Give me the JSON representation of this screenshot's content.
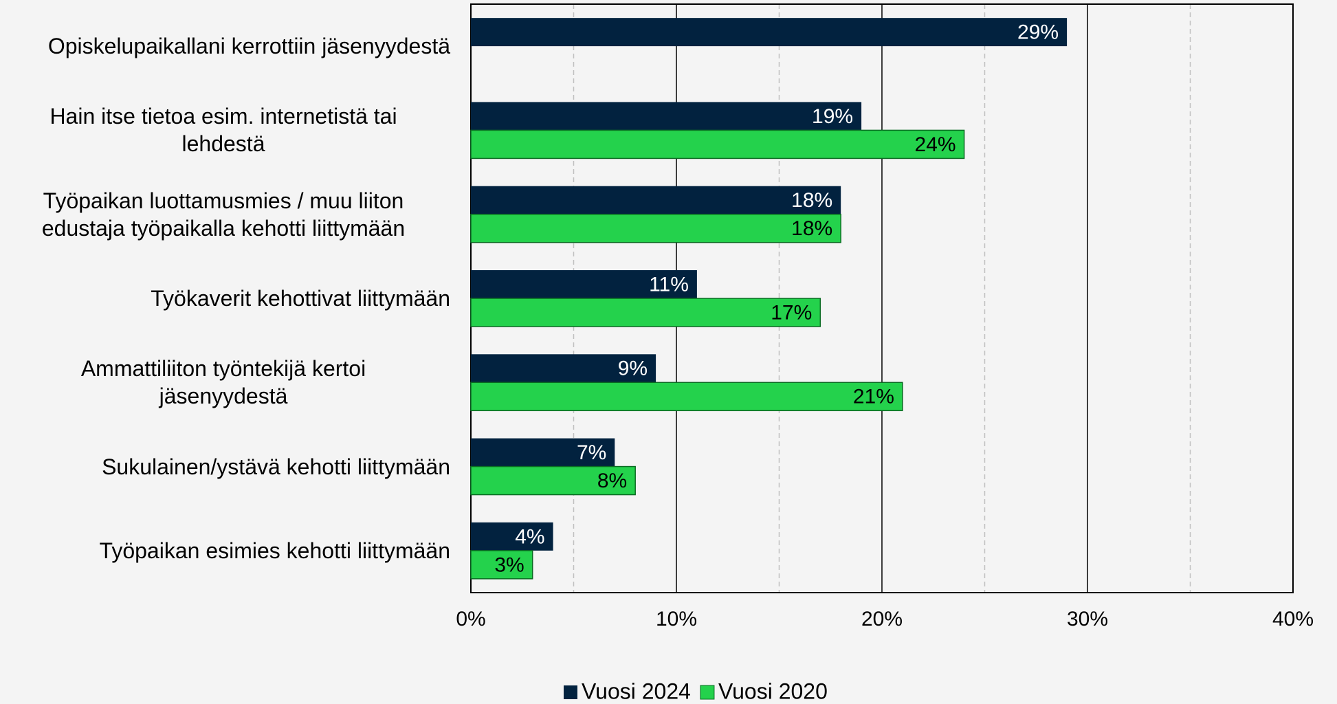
{
  "chart_data": {
    "type": "hbar",
    "categories": [
      "Opiskelupaikallani kerrottiin jäsenyydestä",
      "Hain itse tietoa esim. internetistä tai\nlehdestä",
      "Työpaikan luottamusmies / muu liiton\nedustaja työpaikalla kehotti liittymään",
      "Työkaverit kehottivat liittymään",
      "Ammattiliiton työntekijä kertoi\njäsenyydestä",
      "Sukulainen/ystävä kehotti liittymään",
      "Työpaikan esimies kehotti liittymään"
    ],
    "series": [
      {
        "name": "Vuosi 2024",
        "color": "#02223f",
        "label_color": "#ffffff",
        "values": [
          29,
          19,
          18,
          11,
          9,
          7,
          4
        ],
        "value_labels": [
          "29%",
          "19%",
          "18%",
          "11%",
          "9%",
          "7%",
          "4%"
        ]
      },
      {
        "name": "Vuosi 2020",
        "color": "#24d24c",
        "label_color": "#000000",
        "values": [
          null,
          24,
          18,
          17,
          21,
          8,
          3
        ],
        "value_labels": [
          null,
          "24%",
          "18%",
          "17%",
          "21%",
          "8%",
          "3%"
        ]
      }
    ],
    "xlim": [
      0,
      40
    ],
    "xticks": [
      {
        "value": 0,
        "label": "0%"
      },
      {
        "value": 10,
        "label": "10%"
      },
      {
        "value": 20,
        "label": "20%"
      },
      {
        "value": 30,
        "label": "30%"
      },
      {
        "value": 40,
        "label": "40%"
      }
    ],
    "minor_xticks": [
      5,
      15,
      25,
      35
    ],
    "grid": true,
    "legend": "bottom"
  }
}
